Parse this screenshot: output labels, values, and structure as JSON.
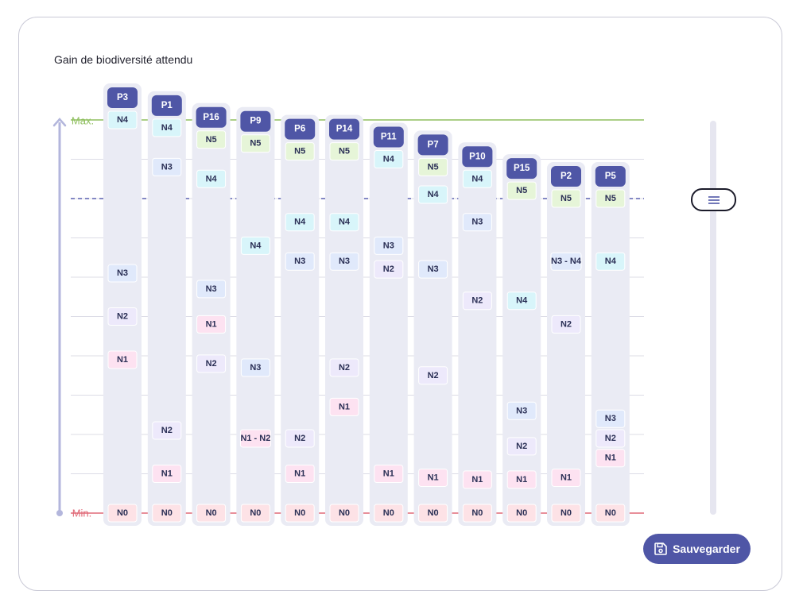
{
  "chart_data": {
    "type": "table",
    "title": "Gain de biodiversité attendu",
    "axis": {
      "max_label": "Max.",
      "min_label": "Min.",
      "range": [
        0,
        10
      ]
    },
    "grid": true,
    "threshold_level": 8,
    "colors": {
      "N0": "#fde2e6",
      "N1": "#fde2f1",
      "N2": "#ede9fb",
      "N3": "#e0e9fb",
      "N4": "#d8f5fa",
      "N5": "#e6f5d8",
      "max": "#8fbf5f",
      "min": "#e06a78",
      "axis": "#b3b6dc",
      "column": "#eaebf4",
      "header": "#4f56a6"
    },
    "columns": [
      {
        "name": "P3",
        "values": [
          {
            "label": "N4",
            "level": 10.0
          },
          {
            "label": "N3",
            "level": 6.1
          },
          {
            "label": "N2",
            "level": 5.0
          },
          {
            "label": "N1",
            "level": 3.9
          },
          {
            "label": "N0",
            "level": 0
          }
        ]
      },
      {
        "name": "P1",
        "values": [
          {
            "label": "N4",
            "level": 9.8
          },
          {
            "label": "N3",
            "level": 8.8
          },
          {
            "label": "N2",
            "level": 2.1
          },
          {
            "label": "N1",
            "level": 1.0
          },
          {
            "label": "N0",
            "level": 0
          }
        ]
      },
      {
        "name": "P16",
        "values": [
          {
            "label": "N5",
            "level": 9.5
          },
          {
            "label": "N4",
            "level": 8.5
          },
          {
            "label": "N3",
            "level": 5.7
          },
          {
            "label": "N1",
            "level": 4.8
          },
          {
            "label": "N2",
            "level": 3.8
          },
          {
            "label": "N0",
            "level": 0
          }
        ]
      },
      {
        "name": "P9",
        "values": [
          {
            "label": "N5",
            "level": 9.4
          },
          {
            "label": "N4",
            "level": 6.8
          },
          {
            "label": "N3",
            "level": 3.7
          },
          {
            "label": "N1 - N2",
            "level": 1.9
          },
          {
            "label": "N0",
            "level": 0
          }
        ]
      },
      {
        "name": "P6",
        "values": [
          {
            "label": "N5",
            "level": 9.2
          },
          {
            "label": "N4",
            "level": 7.4
          },
          {
            "label": "N3",
            "level": 6.4
          },
          {
            "label": "N2",
            "level": 1.9
          },
          {
            "label": "N1",
            "level": 1.0
          },
          {
            "label": "N0",
            "level": 0
          }
        ]
      },
      {
        "name": "P14",
        "values": [
          {
            "label": "N5",
            "level": 9.2
          },
          {
            "label": "N4",
            "level": 7.4
          },
          {
            "label": "N3",
            "level": 6.4
          },
          {
            "label": "N2",
            "level": 3.7
          },
          {
            "label": "N1",
            "level": 2.7
          },
          {
            "label": "N0",
            "level": 0
          }
        ]
      },
      {
        "name": "P11",
        "values": [
          {
            "label": "N4",
            "level": 9.0
          },
          {
            "label": "N3",
            "level": 6.8
          },
          {
            "label": "N2",
            "level": 6.2
          },
          {
            "label": "N1",
            "level": 1.0
          },
          {
            "label": "N0",
            "level": 0
          }
        ]
      },
      {
        "name": "P7",
        "values": [
          {
            "label": "N5",
            "level": 8.8
          },
          {
            "label": "N4",
            "level": 8.1
          },
          {
            "label": "N3",
            "level": 6.2
          },
          {
            "label": "N2",
            "level": 3.5
          },
          {
            "label": "N1",
            "level": 0.9
          },
          {
            "label": "N0",
            "level": 0
          }
        ]
      },
      {
        "name": "P10",
        "values": [
          {
            "label": "N4",
            "level": 8.5
          },
          {
            "label": "N3",
            "level": 7.4
          },
          {
            "label": "N2",
            "level": 5.4
          },
          {
            "label": "N1",
            "level": 0.85
          },
          {
            "label": "N0",
            "level": 0
          }
        ]
      },
      {
        "name": "P15",
        "values": [
          {
            "label": "N5",
            "level": 8.2
          },
          {
            "label": "N4",
            "level": 5.4
          },
          {
            "label": "N3",
            "level": 2.6
          },
          {
            "label": "N2",
            "level": 1.7
          },
          {
            "label": "N1",
            "level": 0.85
          },
          {
            "label": "N0",
            "level": 0
          }
        ]
      },
      {
        "name": "P2",
        "values": [
          {
            "label": "N5",
            "level": 8.0
          },
          {
            "label": "N3 - N4",
            "level": 6.4
          },
          {
            "label": "N2",
            "level": 4.8
          },
          {
            "label": "N1",
            "level": 0.9
          },
          {
            "label": "N0",
            "level": 0
          }
        ]
      },
      {
        "name": "P5",
        "values": [
          {
            "label": "N5",
            "level": 8.0
          },
          {
            "label": "N4",
            "level": 6.4
          },
          {
            "label": "N3",
            "level": 2.4
          },
          {
            "label": "N2",
            "level": 1.9
          },
          {
            "label": "N1",
            "level": 1.4
          },
          {
            "label": "N0",
            "level": 0
          }
        ]
      }
    ]
  },
  "actions": {
    "save_label": "Sauvegarder",
    "save_icon": "floppy-disk-icon",
    "handle_icon": "menu-lines-icon"
  }
}
